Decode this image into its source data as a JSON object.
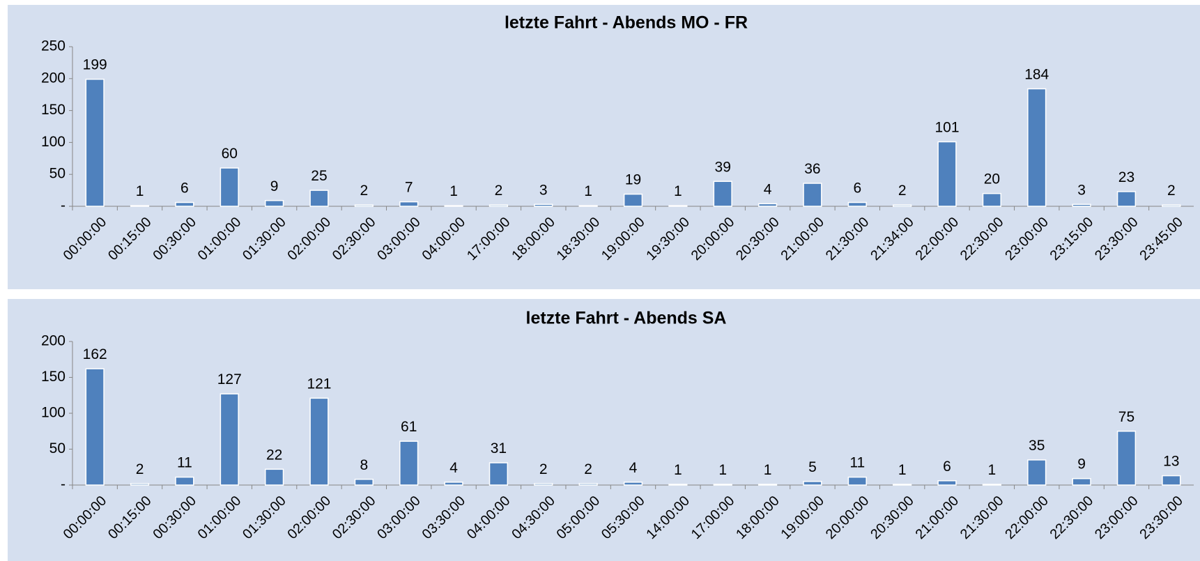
{
  "chart_data": [
    {
      "type": "bar",
      "title": "letzte Fahrt - Abends MO - FR",
      "categories": [
        "00:00:00",
        "00:15:00",
        "00:30:00",
        "01:00:00",
        "01:30:00",
        "02:00:00",
        "02:30:00",
        "03:00:00",
        "04:00:00",
        "17:00:00",
        "18:00:00",
        "18:30:00",
        "19:00:00",
        "19:30:00",
        "20:00:00",
        "20:30:00",
        "21:00:00",
        "21:30:00",
        "21:34:00",
        "22:00:00",
        "22:30:00",
        "23:00:00",
        "23:15:00",
        "23:30:00",
        "23:45:00"
      ],
      "values": [
        199,
        1,
        6,
        60,
        9,
        25,
        2,
        7,
        1,
        2,
        3,
        1,
        19,
        1,
        39,
        4,
        36,
        6,
        2,
        101,
        20,
        184,
        3,
        23,
        2
      ],
      "color": "#4f81bd",
      "ylim": [
        0,
        250
      ],
      "yticks": [
        {
          "value": 0,
          "label": "-"
        },
        50,
        100,
        150,
        200,
        250
      ]
    },
    {
      "type": "bar",
      "title": "letzte Fahrt - Abends SA",
      "categories": [
        "00:00:00",
        "00:15:00",
        "00:30:00",
        "01:00:00",
        "01:30:00",
        "02:00:00",
        "02:30:00",
        "03:00:00",
        "03:30:00",
        "04:00:00",
        "04:30:00",
        "05:00:00",
        "05:30:00",
        "14:00:00",
        "17:00:00",
        "18:00:00",
        "19:00:00",
        "20:00:00",
        "20:30:00",
        "21:00:00",
        "21:30:00",
        "22:00:00",
        "22:30:00",
        "23:00:00",
        "23:30:00"
      ],
      "values": [
        162,
        2,
        11,
        127,
        22,
        121,
        8,
        61,
        4,
        31,
        2,
        2,
        4,
        1,
        1,
        1,
        5,
        11,
        1,
        6,
        1,
        35,
        9,
        75,
        13
      ],
      "color": "#4f81bd",
      "ylim": [
        0,
        200
      ],
      "yticks": [
        {
          "value": 0,
          "label": "-"
        },
        50,
        100,
        150,
        200
      ]
    }
  ]
}
